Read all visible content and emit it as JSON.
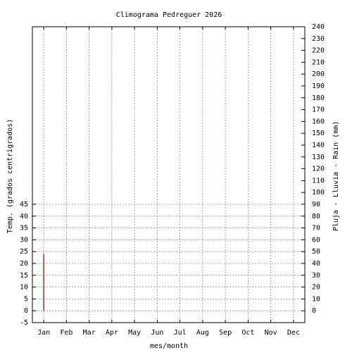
{
  "chart_data": {
    "type": "climogram",
    "title": "Climograma Pedreguer 2026",
    "x_label": "mes/month",
    "y_label": "Temp. (grados centrigrados)",
    "y2_label": "Pluja - Lluvia - Rain (mm)",
    "categories": [
      "Jan",
      "Feb",
      "Mar",
      "Apr",
      "May",
      "Jun",
      "Jul",
      "Aug",
      "Sep",
      "Oct",
      "Nov",
      "Dec"
    ],
    "series": [
      {
        "color": "#8b0000",
        "values": [
          24,
          null,
          null,
          null,
          null,
          null,
          null,
          null,
          null,
          null,
          null,
          null
        ]
      }
    ],
    "ylim": [
      -5,
      120
    ],
    "yticks": [
      -5,
      0,
      5,
      10,
      15,
      20,
      25,
      30,
      35,
      40,
      45
    ],
    "y2lim": [
      -10,
      240
    ],
    "y2ticks": [
      0,
      10,
      20,
      30,
      40,
      50,
      60,
      70,
      80,
      90,
      100,
      110,
      120,
      130,
      140,
      150,
      160,
      170,
      180,
      190,
      200,
      210,
      220,
      230,
      240
    ],
    "grid": true
  }
}
